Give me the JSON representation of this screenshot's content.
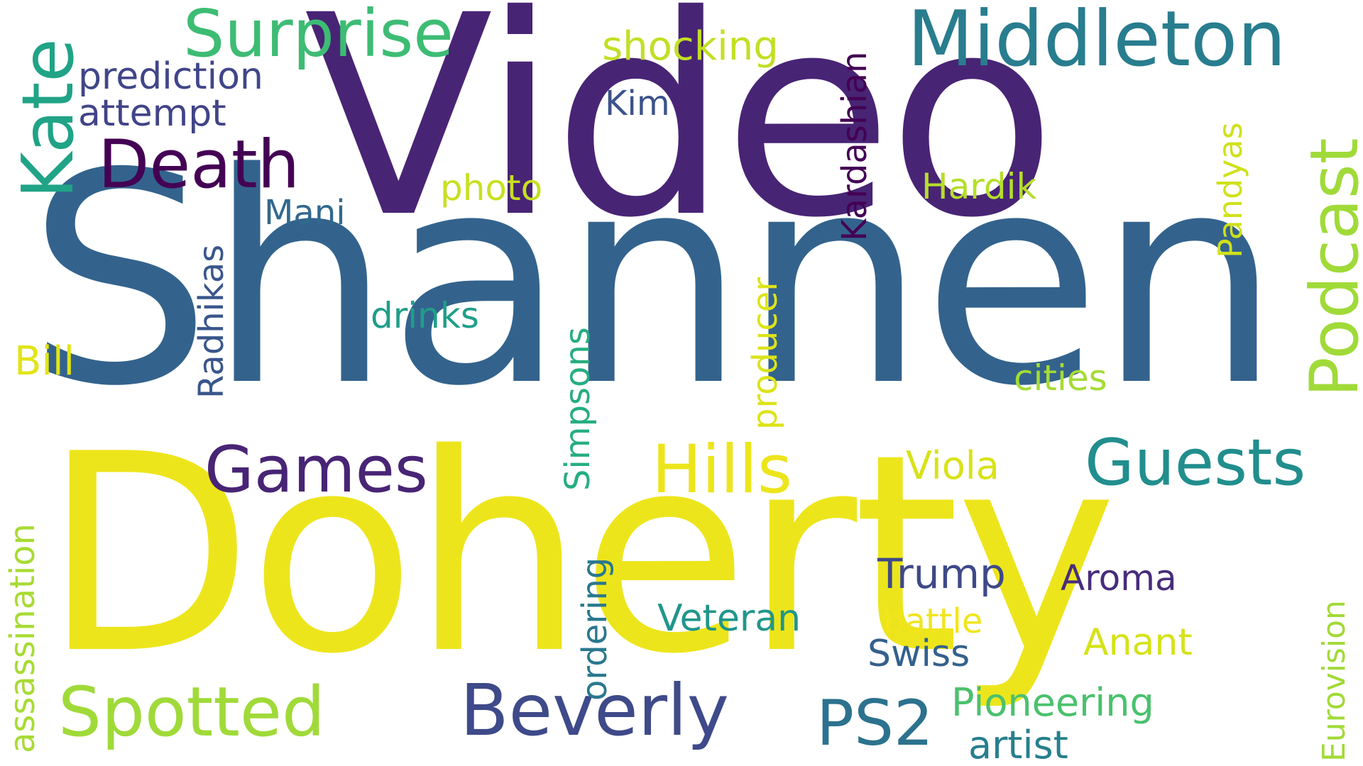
{
  "words": [
    {
      "text": "Shannen",
      "color": "#33638d"
    },
    {
      "text": "Doherty",
      "color": "#ede51b"
    },
    {
      "text": "Video",
      "color": "#482475"
    },
    {
      "text": "Middleton",
      "color": "#287d8e"
    },
    {
      "text": "Surprise",
      "color": "#3dbc74"
    },
    {
      "text": "Kate",
      "color": "#20a386"
    },
    {
      "text": "Death",
      "color": "#440154"
    },
    {
      "text": "Podcast",
      "color": "#a0da39"
    },
    {
      "text": "Guests",
      "color": "#218e8d"
    },
    {
      "text": "Hills",
      "color": "#ede51b"
    },
    {
      "text": "Games",
      "color": "#482475"
    },
    {
      "text": "Spotted",
      "color": "#a0da39"
    },
    {
      "text": "Beverly",
      "color": "#3e4a89"
    },
    {
      "text": "PS2",
      "color": "#2c728e"
    },
    {
      "text": "Kardashian",
      "color": "#440154"
    },
    {
      "text": "shocking",
      "color": "#c2df23"
    },
    {
      "text": "prediction",
      "color": "#404688"
    },
    {
      "text": "attempt",
      "color": "#414487"
    },
    {
      "text": "Kim",
      "color": "#3b528b"
    },
    {
      "text": "photo",
      "color": "#c8e020"
    },
    {
      "text": "Mani",
      "color": "#31688e"
    },
    {
      "text": "Radhikas",
      "color": "#39568c"
    },
    {
      "text": "drinks",
      "color": "#1f9e89"
    },
    {
      "text": "Bill",
      "color": "#e2e418"
    },
    {
      "text": "Hardik",
      "color": "#b5de2b"
    },
    {
      "text": "Pandyas",
      "color": "#d0e11c"
    },
    {
      "text": "cities",
      "color": "#a5db36"
    },
    {
      "text": "producer",
      "color": "#dde318"
    },
    {
      "text": "Simpsons",
      "color": "#26ad81"
    },
    {
      "text": "Viola",
      "color": "#d8e219"
    },
    {
      "text": "assassination",
      "color": "#a8db34"
    },
    {
      "text": "ordering",
      "color": "#2a788e"
    },
    {
      "text": "Trump",
      "color": "#3e4989"
    },
    {
      "text": "Aroma",
      "color": "#472d7b"
    },
    {
      "text": "Veteran",
      "color": "#1f968b"
    },
    {
      "text": "battle",
      "color": "#f1e51d"
    },
    {
      "text": "Anant",
      "color": "#d5e21a"
    },
    {
      "text": "Swiss",
      "color": "#34608d"
    },
    {
      "text": "Pioneering",
      "color": "#4ac16d"
    },
    {
      "text": "artist",
      "color": "#277f8e"
    },
    {
      "text": "Eurovision",
      "color": "#a2da37"
    }
  ]
}
